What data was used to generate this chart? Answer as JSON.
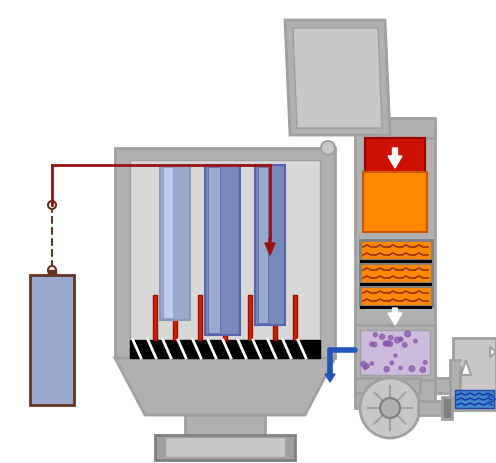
{
  "bg_color": "#ffffff",
  "gray_light": "#c8c8c8",
  "gray_mid": "#a0a0a0",
  "gray_dark": "#808080",
  "gray_body": "#b0b0b0",
  "orange_hot": "#ff6600",
  "orange_mid": "#ff8800",
  "red_hot": "#cc1100",
  "red_arrow": "#991111",
  "blue_part": "#99aacc",
  "blue_wave": "#4488cc",
  "blue_arrow": "#2255bb",
  "purple_dots": "#8855aa",
  "dark_brown": "#663322",
  "black": "#000000",
  "white": "#ffffff",
  "figsize": [
    4.96,
    4.63
  ],
  "dpi": 100
}
